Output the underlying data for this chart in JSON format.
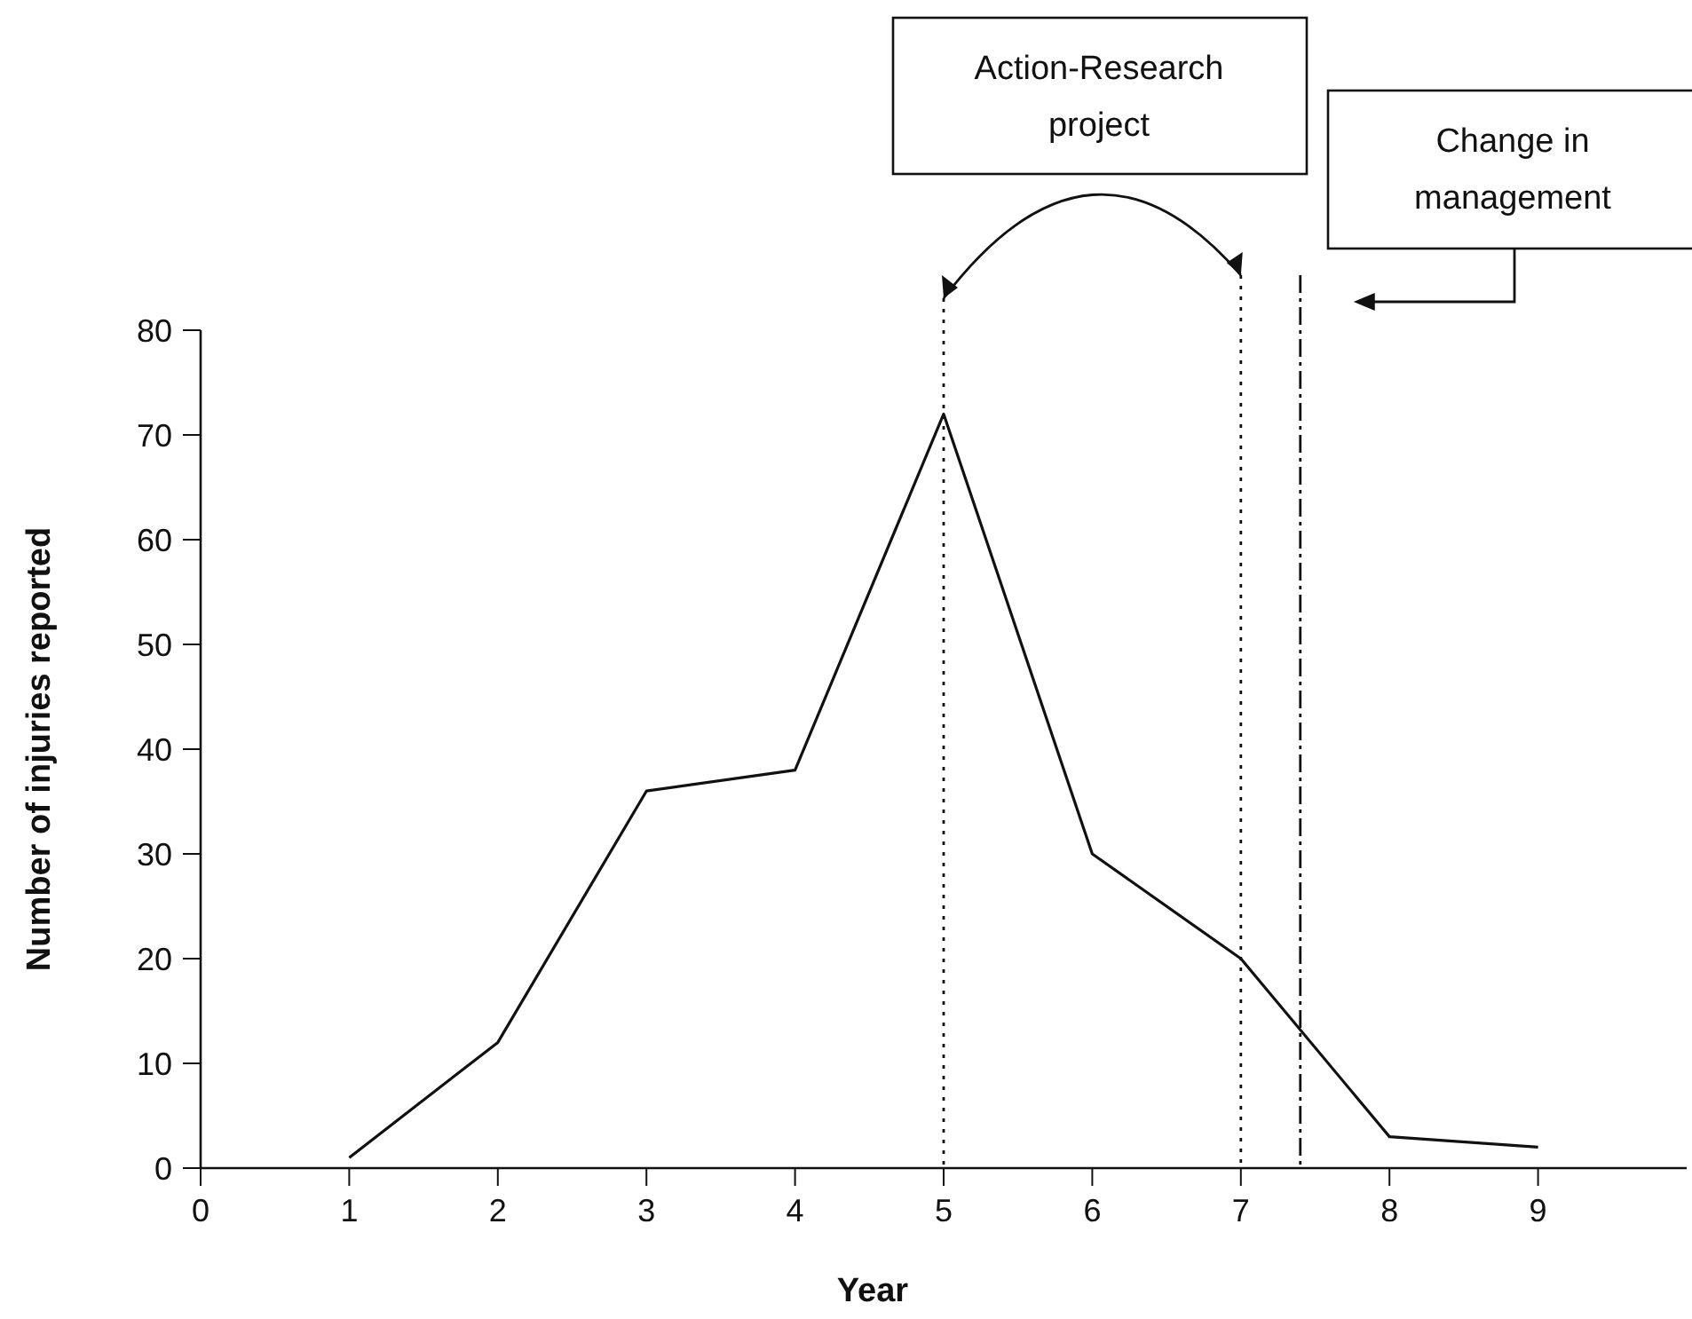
{
  "chart_data": {
    "type": "line",
    "xlabel": "Year",
    "ylabel": "Number of injuries reported",
    "x": [
      1,
      2,
      3,
      4,
      5,
      6,
      7,
      8,
      9
    ],
    "values": [
      1,
      12,
      36,
      38,
      72,
      30,
      20,
      3,
      2
    ],
    "color": "#111111",
    "xlim": [
      0,
      10
    ],
    "xticks": [
      0,
      1,
      2,
      3,
      4,
      5,
      6,
      7,
      8,
      9
    ],
    "ylim": [
      0,
      80
    ],
    "yticks": [
      0,
      10,
      20,
      30,
      40,
      50,
      60,
      70,
      80
    ],
    "grid": false,
    "marker": "none",
    "line_style": "solid",
    "ref_lines": [
      {
        "axis": "x",
        "value": 5,
        "label": null,
        "line_style": "dotted"
      },
      {
        "axis": "x",
        "value": 7,
        "label": null,
        "line_style": "dotted"
      },
      {
        "axis": "x",
        "value": 7.4,
        "label": "Change in management",
        "line_style": "dashdot"
      }
    ],
    "annotations": [
      "Action-Research project"
    ]
  }
}
